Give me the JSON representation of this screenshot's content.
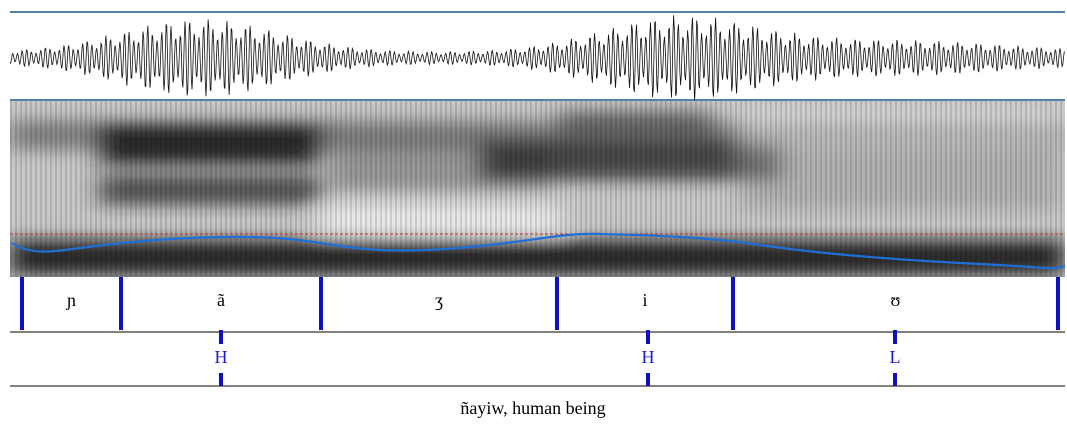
{
  "segments": [
    {
      "label": "ɲ"
    },
    {
      "label": "ã"
    },
    {
      "label": "ʒ"
    },
    {
      "label": "i"
    },
    {
      "label": "ʊ"
    }
  ],
  "tones": [
    {
      "label": "H"
    },
    {
      "label": "H"
    },
    {
      "label": "L"
    }
  ],
  "caption": "ñayiw, human being"
}
